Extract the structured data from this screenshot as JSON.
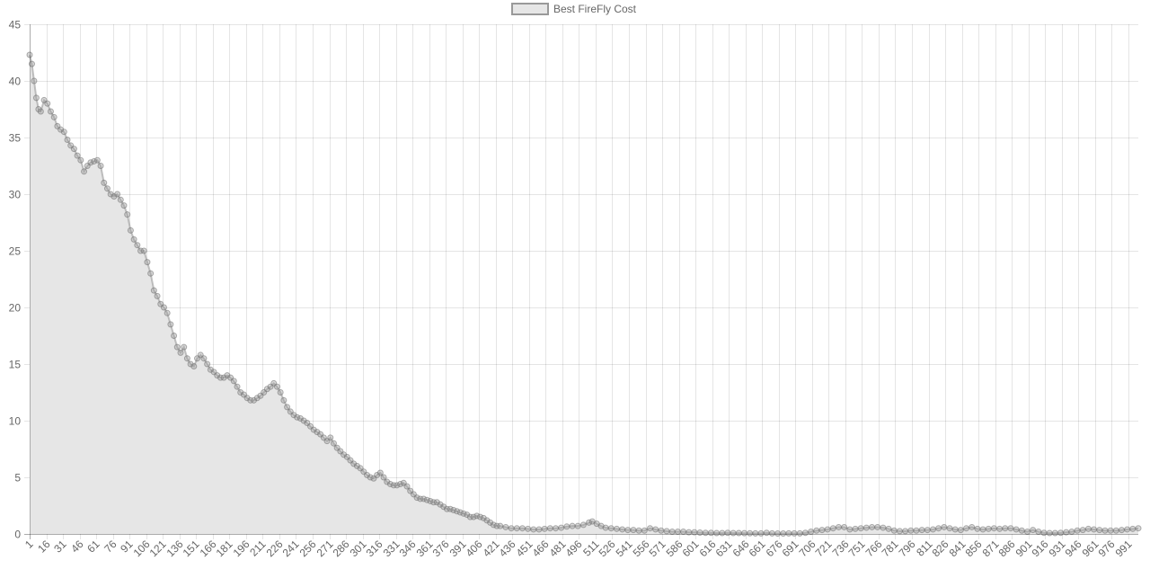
{
  "chart_data": {
    "type": "line",
    "title": "",
    "xlabel": "",
    "ylabel": "",
    "fill": "origin",
    "grid": true,
    "legend_position": "top",
    "x_range": [
      1,
      1000
    ],
    "x_tick_labels": [
      "1",
      "16",
      "31",
      "46",
      "61",
      "76",
      "91",
      "106",
      "121",
      "136",
      "151",
      "166",
      "181",
      "196",
      "211",
      "226",
      "241",
      "256",
      "271",
      "286",
      "301",
      "316",
      "331",
      "346",
      "361",
      "376",
      "391",
      "406",
      "421",
      "436",
      "451",
      "466",
      "481",
      "496",
      "511",
      "526",
      "541",
      "556",
      "571",
      "586",
      "601",
      "616",
      "631",
      "646",
      "661",
      "676",
      "691",
      "706",
      "721",
      "736",
      "751",
      "766",
      "781",
      "796",
      "811",
      "826",
      "841",
      "856",
      "871",
      "886",
      "901",
      "916",
      "931",
      "946",
      "961",
      "976",
      "991"
    ],
    "y_ticks": [
      "0",
      "5",
      "10",
      "15",
      "20",
      "25",
      "30",
      "35",
      "40",
      "45"
    ],
    "ylim": [
      0,
      45
    ],
    "series": [
      {
        "name": "Best FireFly Cost",
        "color": "#999999",
        "fill_color": "#e6e6e6",
        "points": [
          [
            1,
            42.3
          ],
          [
            3,
            41.5
          ],
          [
            5,
            40.0
          ],
          [
            7,
            38.5
          ],
          [
            9,
            37.5
          ],
          [
            11,
            37.3
          ],
          [
            14,
            38.3
          ],
          [
            17,
            38.0
          ],
          [
            20,
            37.3
          ],
          [
            23,
            36.8
          ],
          [
            26,
            36.0
          ],
          [
            29,
            35.7
          ],
          [
            32,
            35.5
          ],
          [
            35,
            34.8
          ],
          [
            38,
            34.3
          ],
          [
            41,
            34.0
          ],
          [
            44,
            33.4
          ],
          [
            47,
            33.0
          ],
          [
            50,
            32.0
          ],
          [
            53,
            32.5
          ],
          [
            56,
            32.8
          ],
          [
            59,
            32.9
          ],
          [
            62,
            33.0
          ],
          [
            65,
            32.5
          ],
          [
            68,
            31.0
          ],
          [
            71,
            30.5
          ],
          [
            74,
            30.0
          ],
          [
            77,
            29.8
          ],
          [
            80,
            30.0
          ],
          [
            83,
            29.5
          ],
          [
            86,
            29.0
          ],
          [
            89,
            28.2
          ],
          [
            92,
            26.8
          ],
          [
            95,
            26.0
          ],
          [
            98,
            25.5
          ],
          [
            101,
            25.0
          ],
          [
            104,
            25.0
          ],
          [
            107,
            24.0
          ],
          [
            110,
            23.0
          ],
          [
            113,
            21.5
          ],
          [
            116,
            21.0
          ],
          [
            119,
            20.3
          ],
          [
            122,
            20.0
          ],
          [
            125,
            19.5
          ],
          [
            128,
            18.5
          ],
          [
            131,
            17.5
          ],
          [
            134,
            16.5
          ],
          [
            137,
            16.0
          ],
          [
            140,
            16.5
          ],
          [
            143,
            15.5
          ],
          [
            146,
            15.0
          ],
          [
            149,
            14.8
          ],
          [
            152,
            15.5
          ],
          [
            155,
            15.8
          ],
          [
            158,
            15.5
          ],
          [
            161,
            15.0
          ],
          [
            164,
            14.5
          ],
          [
            167,
            14.3
          ],
          [
            170,
            14.0
          ],
          [
            173,
            13.8
          ],
          [
            176,
            13.8
          ],
          [
            179,
            14.0
          ],
          [
            182,
            13.8
          ],
          [
            185,
            13.5
          ],
          [
            188,
            13.0
          ],
          [
            191,
            12.5
          ],
          [
            194,
            12.3
          ],
          [
            197,
            12.0
          ],
          [
            200,
            11.8
          ],
          [
            203,
            11.8
          ],
          [
            206,
            12.0
          ],
          [
            209,
            12.2
          ],
          [
            212,
            12.5
          ],
          [
            215,
            12.8
          ],
          [
            218,
            13.0
          ],
          [
            221,
            13.3
          ],
          [
            224,
            13.0
          ],
          [
            227,
            12.5
          ],
          [
            230,
            11.8
          ],
          [
            233,
            11.2
          ],
          [
            236,
            10.8
          ],
          [
            239,
            10.5
          ],
          [
            242,
            10.3
          ],
          [
            245,
            10.2
          ],
          [
            248,
            10.0
          ],
          [
            251,
            9.8
          ],
          [
            254,
            9.5
          ],
          [
            257,
            9.2
          ],
          [
            260,
            9.0
          ],
          [
            263,
            8.8
          ],
          [
            266,
            8.5
          ],
          [
            269,
            8.2
          ],
          [
            272,
            8.5
          ],
          [
            275,
            8.0
          ],
          [
            278,
            7.6
          ],
          [
            281,
            7.3
          ],
          [
            284,
            7.0
          ],
          [
            287,
            6.8
          ],
          [
            290,
            6.5
          ],
          [
            293,
            6.2
          ],
          [
            296,
            6.0
          ],
          [
            299,
            5.8
          ],
          [
            302,
            5.5
          ],
          [
            305,
            5.2
          ],
          [
            308,
            5.0
          ],
          [
            311,
            4.9
          ],
          [
            314,
            5.2
          ],
          [
            317,
            5.4
          ],
          [
            320,
            5.0
          ],
          [
            323,
            4.6
          ],
          [
            326,
            4.4
          ],
          [
            329,
            4.3
          ],
          [
            332,
            4.3
          ],
          [
            335,
            4.4
          ],
          [
            338,
            4.5
          ],
          [
            341,
            4.2
          ],
          [
            344,
            3.8
          ],
          [
            347,
            3.5
          ],
          [
            350,
            3.2
          ],
          [
            353,
            3.1
          ],
          [
            356,
            3.1
          ],
          [
            359,
            3.0
          ],
          [
            362,
            2.9
          ],
          [
            365,
            2.8
          ],
          [
            368,
            2.8
          ],
          [
            371,
            2.6
          ],
          [
            374,
            2.4
          ],
          [
            377,
            2.2
          ],
          [
            380,
            2.2
          ],
          [
            383,
            2.1
          ],
          [
            386,
            2.0
          ],
          [
            389,
            1.9
          ],
          [
            392,
            1.8
          ],
          [
            395,
            1.7
          ],
          [
            398,
            1.5
          ],
          [
            401,
            1.5
          ],
          [
            404,
            1.6
          ],
          [
            407,
            1.5
          ],
          [
            410,
            1.4
          ],
          [
            413,
            1.2
          ],
          [
            416,
            1.0
          ],
          [
            419,
            0.8
          ],
          [
            422,
            0.7
          ],
          [
            425,
            0.7
          ],
          [
            430,
            0.6
          ],
          [
            435,
            0.5
          ],
          [
            440,
            0.5
          ],
          [
            445,
            0.5
          ],
          [
            450,
            0.45
          ],
          [
            455,
            0.4
          ],
          [
            460,
            0.4
          ],
          [
            465,
            0.45
          ],
          [
            470,
            0.5
          ],
          [
            475,
            0.5
          ],
          [
            480,
            0.55
          ],
          [
            485,
            0.65
          ],
          [
            490,
            0.7
          ],
          [
            495,
            0.7
          ],
          [
            500,
            0.8
          ],
          [
            505,
            1.0
          ],
          [
            508,
            1.1
          ],
          [
            512,
            0.9
          ],
          [
            516,
            0.7
          ],
          [
            520,
            0.55
          ],
          [
            525,
            0.5
          ],
          [
            530,
            0.45
          ],
          [
            535,
            0.4
          ],
          [
            540,
            0.35
          ],
          [
            545,
            0.35
          ],
          [
            550,
            0.3
          ],
          [
            555,
            0.3
          ],
          [
            560,
            0.5
          ],
          [
            565,
            0.4
          ],
          [
            570,
            0.3
          ],
          [
            575,
            0.25
          ],
          [
            580,
            0.2
          ],
          [
            585,
            0.2
          ],
          [
            590,
            0.2
          ],
          [
            595,
            0.15
          ],
          [
            600,
            0.15
          ],
          [
            605,
            0.12
          ],
          [
            610,
            0.1
          ],
          [
            615,
            0.1
          ],
          [
            620,
            0.08
          ],
          [
            625,
            0.08
          ],
          [
            630,
            0.1
          ],
          [
            635,
            0.08
          ],
          [
            640,
            0.08
          ],
          [
            645,
            0.07
          ],
          [
            650,
            0.06
          ],
          [
            655,
            0.05
          ],
          [
            660,
            0.05
          ],
          [
            665,
            0.1
          ],
          [
            670,
            0.05
          ],
          [
            675,
            0.04
          ],
          [
            680,
            0.04
          ],
          [
            685,
            0.05
          ],
          [
            690,
            0.05
          ],
          [
            695,
            0.05
          ],
          [
            700,
            0.1
          ],
          [
            705,
            0.2
          ],
          [
            710,
            0.3
          ],
          [
            715,
            0.35
          ],
          [
            720,
            0.4
          ],
          [
            725,
            0.5
          ],
          [
            730,
            0.6
          ],
          [
            735,
            0.6
          ],
          [
            740,
            0.4
          ],
          [
            745,
            0.45
          ],
          [
            750,
            0.5
          ],
          [
            755,
            0.55
          ],
          [
            760,
            0.6
          ],
          [
            765,
            0.6
          ],
          [
            770,
            0.55
          ],
          [
            775,
            0.45
          ],
          [
            780,
            0.3
          ],
          [
            785,
            0.25
          ],
          [
            790,
            0.25
          ],
          [
            795,
            0.3
          ],
          [
            800,
            0.3
          ],
          [
            805,
            0.35
          ],
          [
            810,
            0.35
          ],
          [
            815,
            0.4
          ],
          [
            820,
            0.5
          ],
          [
            825,
            0.6
          ],
          [
            830,
            0.5
          ],
          [
            835,
            0.4
          ],
          [
            840,
            0.35
          ],
          [
            845,
            0.5
          ],
          [
            850,
            0.6
          ],
          [
            855,
            0.45
          ],
          [
            860,
            0.4
          ],
          [
            865,
            0.45
          ],
          [
            870,
            0.5
          ],
          [
            875,
            0.45
          ],
          [
            880,
            0.5
          ],
          [
            885,
            0.5
          ],
          [
            890,
            0.4
          ],
          [
            895,
            0.3
          ],
          [
            900,
            0.2
          ],
          [
            905,
            0.35
          ],
          [
            910,
            0.2
          ],
          [
            915,
            0.1
          ],
          [
            920,
            0.08
          ],
          [
            925,
            0.08
          ],
          [
            930,
            0.1
          ],
          [
            935,
            0.15
          ],
          [
            940,
            0.2
          ],
          [
            945,
            0.3
          ],
          [
            950,
            0.35
          ],
          [
            955,
            0.45
          ],
          [
            960,
            0.4
          ],
          [
            965,
            0.35
          ],
          [
            970,
            0.3
          ],
          [
            975,
            0.3
          ],
          [
            980,
            0.3
          ],
          [
            985,
            0.35
          ],
          [
            990,
            0.4
          ],
          [
            995,
            0.45
          ],
          [
            1000,
            0.5
          ]
        ]
      }
    ]
  }
}
